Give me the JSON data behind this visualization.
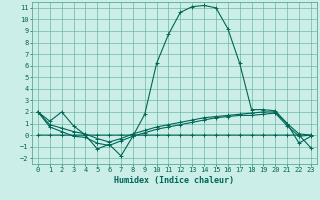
{
  "xlabel": "Humidex (Indice chaleur)",
  "xlim": [
    -0.5,
    23.5
  ],
  "ylim": [
    -2.5,
    11.5
  ],
  "xticks": [
    0,
    1,
    2,
    3,
    4,
    5,
    6,
    7,
    8,
    9,
    10,
    11,
    12,
    13,
    14,
    15,
    16,
    17,
    18,
    19,
    20,
    21,
    22,
    23
  ],
  "yticks": [
    -2,
    -1,
    0,
    1,
    2,
    3,
    4,
    5,
    6,
    7,
    8,
    9,
    10,
    11
  ],
  "background_color": "#cceee8",
  "grid_color": "#5aaa96",
  "line_color": "#006655",
  "series1_y": [
    2.0,
    1.2,
    2.0,
    0.8,
    0.0,
    -1.2,
    -0.8,
    -1.8,
    -0.1,
    1.8,
    6.2,
    8.7,
    10.6,
    11.1,
    11.2,
    11.0,
    9.2,
    6.2,
    2.2,
    2.2,
    2.1,
    1.0,
    -0.7,
    -0.1
  ],
  "series2_y": [
    2.0,
    0.9,
    0.6,
    0.3,
    0.1,
    -0.3,
    -0.6,
    -0.3,
    0.1,
    0.4,
    0.7,
    0.9,
    1.1,
    1.3,
    1.5,
    1.6,
    1.7,
    1.8,
    1.9,
    2.0,
    2.0,
    1.0,
    0.1,
    0.0
  ],
  "series3_y": [
    2.0,
    0.7,
    0.3,
    -0.1,
    -0.2,
    -0.7,
    -0.9,
    -0.5,
    -0.1,
    0.2,
    0.5,
    0.7,
    0.9,
    1.1,
    1.3,
    1.5,
    1.6,
    1.7,
    1.7,
    1.8,
    1.9,
    0.8,
    -0.1,
    0.0
  ],
  "series4_y": [
    0.0,
    0.0,
    0.0,
    0.0,
    0.0,
    0.0,
    0.0,
    0.0,
    0.0,
    0.0,
    0.0,
    0.0,
    0.0,
    0.0,
    0.0,
    0.0,
    0.0,
    0.0,
    0.0,
    0.0,
    0.0,
    0.0,
    0.0,
    -1.1
  ],
  "marker": "+",
  "markersize": 3,
  "linewidth": 0.8,
  "tick_fontsize": 5,
  "label_fontsize": 6
}
